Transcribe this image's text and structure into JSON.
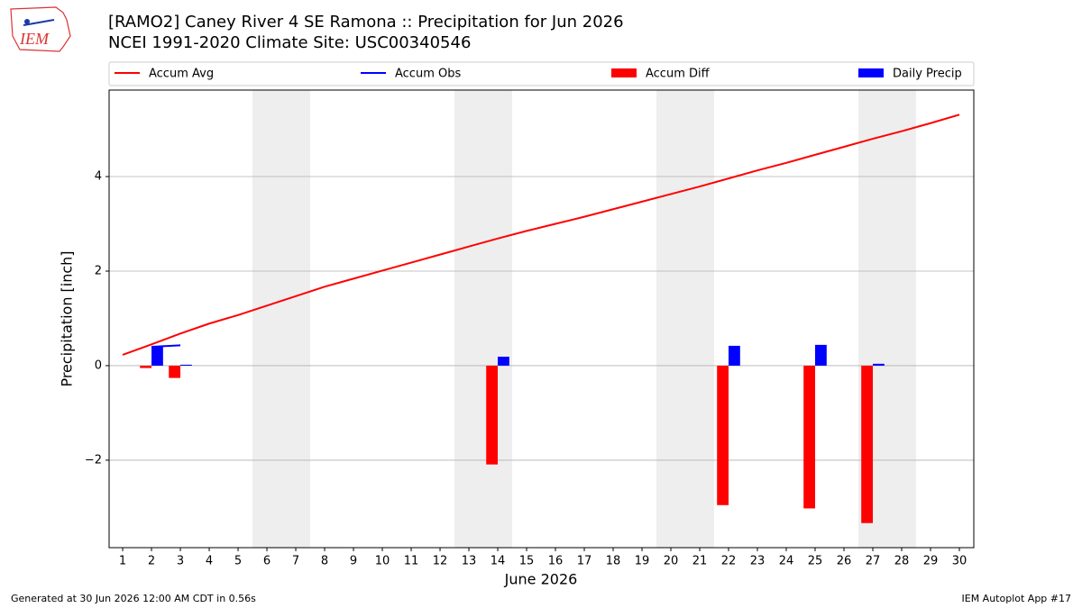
{
  "chart_data": {
    "type": "bar",
    "title": "[RAMO2] Caney River 4 SE Ramona :: Precipitation for Jun 2026",
    "subtitle": "NCEI 1991-2020 Climate Site: USC00340546",
    "logo_text": "IEM",
    "x_label": "June 2026",
    "y_label": "Precipitation [inch]",
    "x": [
      1,
      2,
      3,
      4,
      5,
      6,
      7,
      8,
      9,
      10,
      11,
      12,
      13,
      14,
      15,
      16,
      17,
      18,
      19,
      20,
      21,
      22,
      23,
      24,
      25,
      26,
      27,
      28,
      29,
      30
    ],
    "series": [
      {
        "name": "Accum Avg",
        "kind": "line",
        "color": "#ff0000",
        "values": [
          0.23,
          0.45,
          0.68,
          0.89,
          1.07,
          1.27,
          1.47,
          1.67,
          1.84,
          2.01,
          2.18,
          2.35,
          2.52,
          2.69,
          2.85,
          3.0,
          3.15,
          3.31,
          3.47,
          3.63,
          3.79,
          3.96,
          4.13,
          4.29,
          4.46,
          4.63,
          4.8,
          4.96,
          5.13,
          5.31
        ]
      },
      {
        "name": "Accum Obs",
        "kind": "line",
        "color": "#0000ff",
        "values": [
          null,
          0.4,
          0.43,
          null,
          null,
          null,
          null,
          null,
          null,
          null,
          null,
          null,
          null,
          null,
          null,
          null,
          null,
          null,
          null,
          null,
          null,
          null,
          null,
          null,
          null,
          null,
          null,
          null,
          null,
          null
        ]
      },
      {
        "name": "Accum Diff",
        "kind": "bar",
        "color": "#ff0000",
        "values": [
          null,
          -0.05,
          -0.26,
          null,
          null,
          null,
          null,
          null,
          null,
          null,
          null,
          null,
          null,
          -2.09,
          null,
          null,
          null,
          null,
          null,
          null,
          null,
          -2.95,
          null,
          null,
          -3.02,
          null,
          -3.33,
          null,
          null,
          null
        ]
      },
      {
        "name": "Daily Precip",
        "kind": "bar",
        "color": "#0000ff",
        "values": [
          null,
          0.4,
          0.02,
          null,
          null,
          null,
          null,
          null,
          null,
          null,
          null,
          null,
          null,
          0.19,
          null,
          null,
          null,
          null,
          null,
          null,
          null,
          0.42,
          null,
          null,
          0.44,
          null,
          0.04,
          null,
          null,
          null
        ]
      }
    ],
    "shaded_spans": [
      [
        5.5,
        7.5
      ],
      [
        12.5,
        14.5
      ],
      [
        19.5,
        21.5
      ],
      [
        26.5,
        28.5
      ]
    ],
    "xlim": [
      0.53,
      30.5
    ],
    "xticks": [
      1,
      2,
      3,
      4,
      5,
      6,
      7,
      8,
      9,
      10,
      11,
      12,
      13,
      14,
      15,
      16,
      17,
      18,
      19,
      20,
      21,
      22,
      23,
      24,
      25,
      26,
      27,
      28,
      29,
      30
    ],
    "ylim": [
      -3.85,
      5.83
    ],
    "yticks": [
      {
        "value": -2,
        "label": "−2"
      },
      0,
      2,
      4
    ],
    "grid": true,
    "legend": "top",
    "footer_left": "Generated at 30 Jun 2026 12:00 AM CDT in 0.56s",
    "footer_right": "IEM Autoplot App #17"
  }
}
